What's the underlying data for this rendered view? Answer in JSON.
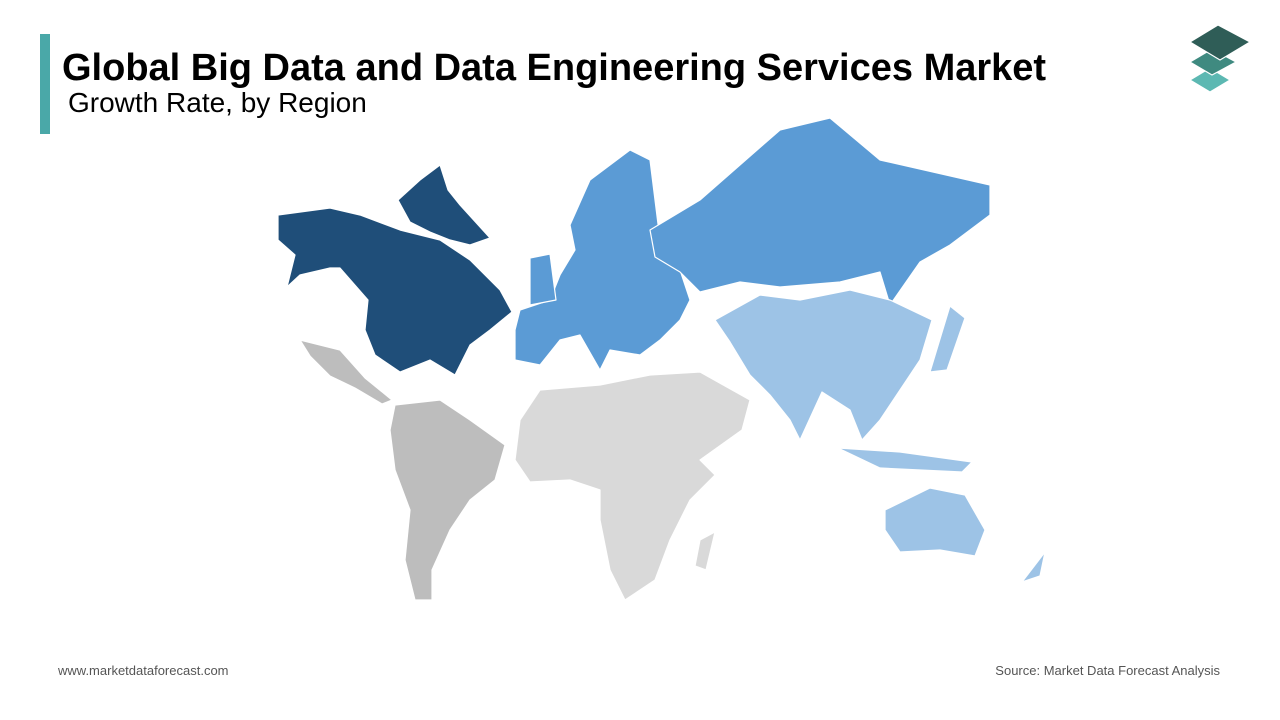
{
  "header": {
    "title": "Global Big Data and Data Engineering Services Market",
    "subtitle": "Growth Rate, by Region"
  },
  "footer": {
    "website": "www.marketdataforecast.com",
    "source": "Source: Market Data Forecast Analysis"
  }
}
